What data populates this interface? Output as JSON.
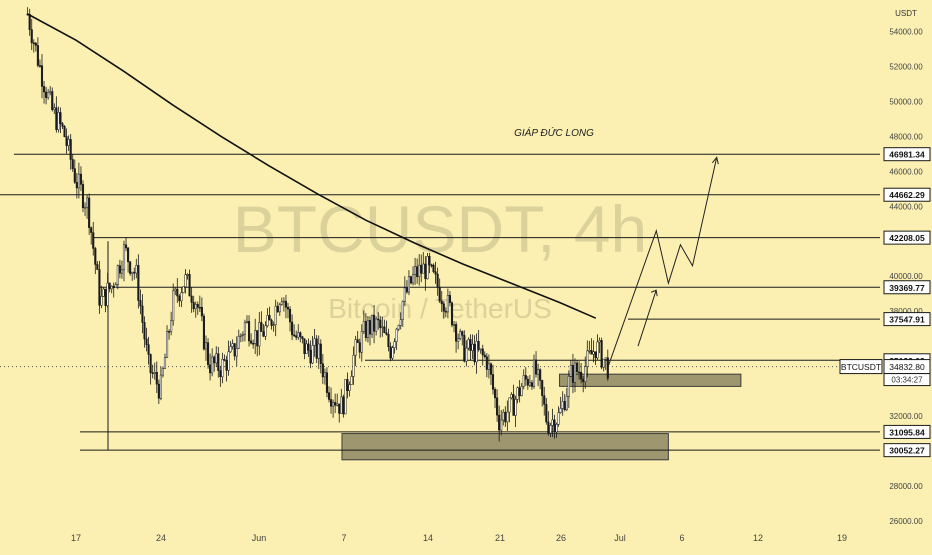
{
  "chart_data": {
    "type": "candlestick",
    "symbol_label": "BTCUSDT",
    "watermark": {
      "title": "BTCUSDT, 4h",
      "subtitle": "Bitcoin / TetherUS"
    },
    "author_note": "GIÁP ĐỨC LONG",
    "currency": "USDT",
    "y_scale": "linear",
    "ylim": [
      26000,
      55000
    ],
    "y_ticks": [
      54000,
      52000,
      50000,
      48000,
      46000,
      44000,
      40000,
      38000,
      32000,
      28000,
      26000
    ],
    "x_ticks": [
      "17",
      "24",
      "Jun",
      "7",
      "14",
      "21",
      "26",
      "Jul",
      "6",
      "12",
      "19"
    ],
    "price_levels": [
      {
        "value": 46981.34,
        "label": "46981.34"
      },
      {
        "value": 44662.29,
        "label": "44662.29"
      },
      {
        "value": 42208.05,
        "label": "42208.05"
      },
      {
        "value": 39369.77,
        "label": "39369.77"
      },
      {
        "value": 37547.91,
        "label": "37547.91"
      },
      {
        "value": 35192.03,
        "label": "35192.03"
      },
      {
        "value": 31095.84,
        "label": "31095.84"
      },
      {
        "value": 30052.27,
        "label": "30052.27"
      }
    ],
    "current_price": {
      "value": 34832.8,
      "label": "34832.80",
      "countdown": "03:34:27"
    },
    "zones": [
      {
        "y_low": 29500,
        "y_high": 31000,
        "x_start": "Jun 8",
        "x_end": "Jul 5"
      },
      {
        "y_low": 33700,
        "y_high": 34400,
        "x_start": "Jun 26",
        "x_end": "Jul 11"
      }
    ],
    "moving_average": [
      [
        "May 13",
        55000
      ],
      [
        "May 17",
        53500
      ],
      [
        "May 21",
        51700
      ],
      [
        "May 25",
        49800
      ],
      [
        "May 29",
        48000
      ],
      [
        "Jun 2",
        46300
      ],
      [
        "Jun 6",
        44700
      ],
      [
        "Jun 10",
        43200
      ],
      [
        "Jun 14",
        41900
      ],
      [
        "Jun 18",
        40700
      ],
      [
        "Jun 22",
        39600
      ],
      [
        "Jun 26",
        38500
      ],
      [
        "Jun 29",
        37600
      ]
    ],
    "projection_path": [
      [
        "Jun 30",
        34800
      ],
      [
        "Jul 4",
        42600
      ],
      [
        "Jul 5",
        39600
      ],
      [
        "Jul 6",
        41800
      ],
      [
        "Jul 7",
        40600
      ],
      [
        "Jul 9",
        46800
      ]
    ],
    "price_path": [
      [
        "May 13",
        55000
      ],
      [
        "May 14",
        52000
      ],
      [
        "May 15",
        49500
      ],
      [
        "May 16",
        48200
      ],
      [
        "May 17",
        45500
      ],
      [
        "May 18",
        44000
      ],
      [
        "May 19",
        38500
      ],
      [
        "May 20",
        39500
      ],
      [
        "May 21",
        41500
      ],
      [
        "May 22",
        40000
      ],
      [
        "May 23",
        34800
      ],
      [
        "May 24",
        33500
      ],
      [
        "May 25",
        38500
      ],
      [
        "May 26",
        39800
      ],
      [
        "May 27",
        38500
      ],
      [
        "May 28",
        35000
      ],
      [
        "May 29",
        34800
      ],
      [
        "May 30",
        35600
      ],
      [
        "May 31",
        37300
      ],
      [
        "Jun 1",
        36500
      ],
      [
        "Jun 2",
        37200
      ],
      [
        "Jun 3",
        39200
      ],
      [
        "Jun 4",
        36700
      ],
      [
        "Jun 5",
        35800
      ],
      [
        "Jun 6",
        35700
      ],
      [
        "Jun 7",
        33400
      ],
      [
        "Jun 8",
        32500
      ],
      [
        "Jun 9",
        35500
      ],
      [
        "Jun 10",
        37000
      ],
      [
        "Jun 11",
        37200
      ],
      [
        "Jun 12",
        35800
      ],
      [
        "Jun 13",
        38500
      ],
      [
        "Jun 14",
        40100
      ],
      [
        "Jun 15",
        40500
      ],
      [
        "Jun 16",
        39300
      ],
      [
        "Jun 17",
        38000
      ],
      [
        "Jun 18",
        35800
      ],
      [
        "Jun 19",
        35700
      ],
      [
        "Jun 20",
        35200
      ],
      [
        "Jun 21",
        31800
      ],
      [
        "Jun 22",
        32500
      ],
      [
        "Jun 23",
        33900
      ],
      [
        "Jun 24",
        34600
      ],
      [
        "Jun 25",
        31600
      ],
      [
        "Jun 26",
        32000
      ],
      [
        "Jun 27",
        34500
      ],
      [
        "Jun 28",
        34700
      ],
      [
        "Jun 29",
        36000
      ],
      [
        "Jun 30",
        34832.8
      ]
    ]
  }
}
